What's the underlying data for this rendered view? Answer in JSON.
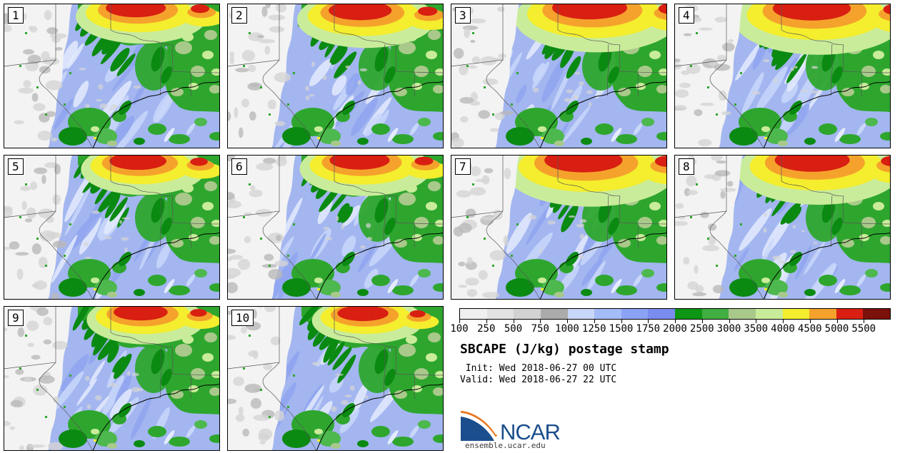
{
  "panels": [
    {
      "label": "1"
    },
    {
      "label": "2"
    },
    {
      "label": "3"
    },
    {
      "label": "4"
    },
    {
      "label": "5"
    },
    {
      "label": "6"
    },
    {
      "label": "7"
    },
    {
      "label": "8"
    },
    {
      "label": "9"
    },
    {
      "label": "10"
    }
  ],
  "colorbar": {
    "tick_labels": [
      "100",
      "250",
      "500",
      "750",
      "1000",
      "1250",
      "1500",
      "1750",
      "2000",
      "2500",
      "3000",
      "3500",
      "4000",
      "4500",
      "5000",
      "5500"
    ],
    "segment_colors": [
      "#f0f0f0",
      "#e2e2e2",
      "#d2d2d2",
      "#ababab",
      "#c8d6f8",
      "#a4bcf8",
      "#8ba3f4",
      "#7b8cf0",
      "#0d9613",
      "#41ae41",
      "#a9c98a",
      "#c9ec9a",
      "#f4ee2e",
      "#f5a22c",
      "#d81f12",
      "#7c100b"
    ]
  },
  "legend": {
    "title": "SBCAPE (J/kg) postage stamp",
    "init_line": " Init: Wed 2018-06-27 00 UTC",
    "valid_line": "Valid: Wed 2018-06-27 22 UTC"
  },
  "logo": {
    "text": "NCAR",
    "url": "ensemble.ucar.edu",
    "blue": "#1b4e8c",
    "orange": "#e87722"
  },
  "map_palette": {
    "bg_blue": "#a3b6f0",
    "streak_light": "#c9d7fa",
    "streak_pale": "#e4ebfd",
    "blue_mid": "#8fa5ee",
    "gray_land": "#f3f3f3",
    "gray_mottle": "#d4d4d4",
    "gray_dark": "#b9b9b9",
    "green_dark": "#0b8a12",
    "green_mid": "#2ea62e",
    "green_lt": "#4db84d",
    "sage": "#a9c98a",
    "pale_green": "#c9ec9a",
    "yellow": "#f4ee2e",
    "orange": "#f5a22c",
    "red": "#d81f12",
    "border_line": "#555555",
    "coast_line": "#000000"
  }
}
